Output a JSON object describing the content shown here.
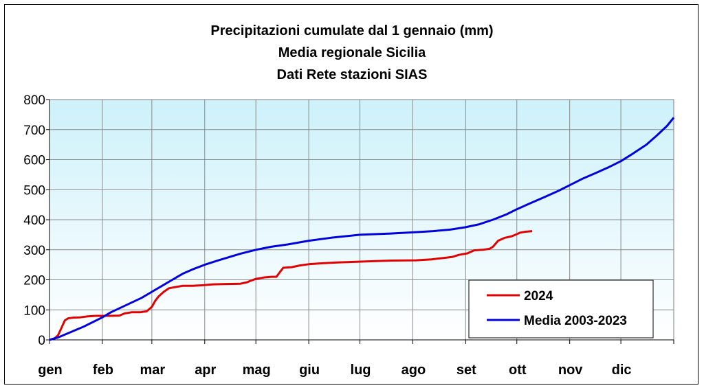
{
  "chart_data": {
    "type": "line",
    "title": [
      "Precipitazioni cumulate dal 1 gennaio (mm)",
      "Media regionale Sicilia",
      "Dati Rete stazioni SIAS"
    ],
    "xlabel": "",
    "ylabel": "",
    "ylim": [
      0,
      800
    ],
    "yticks": [
      0,
      100,
      200,
      300,
      400,
      500,
      600,
      700,
      800
    ],
    "x_unit": "day of year",
    "xlim": [
      0,
      366
    ],
    "month_labels": [
      "gen",
      "feb",
      "mar",
      "apr",
      "mag",
      "giu",
      "lug",
      "ago",
      "set",
      "ott",
      "nov",
      "dic"
    ],
    "month_starts": [
      0,
      31,
      60,
      91,
      121,
      152,
      182,
      213,
      244,
      274,
      305,
      335
    ],
    "grid": true,
    "legend_position": "bottom-right",
    "series": [
      {
        "name": "2024",
        "color": "#e00000",
        "points": [
          [
            0,
            0
          ],
          [
            3,
            5
          ],
          [
            5,
            15
          ],
          [
            7,
            40
          ],
          [
            9,
            65
          ],
          [
            11,
            72
          ],
          [
            14,
            74
          ],
          [
            18,
            75
          ],
          [
            22,
            78
          ],
          [
            27,
            80
          ],
          [
            31,
            80
          ],
          [
            36,
            80
          ],
          [
            41,
            81
          ],
          [
            44,
            88
          ],
          [
            48,
            92
          ],
          [
            53,
            92
          ],
          [
            57,
            95
          ],
          [
            60,
            110
          ],
          [
            62,
            130
          ],
          [
            64,
            145
          ],
          [
            67,
            160
          ],
          [
            70,
            172
          ],
          [
            74,
            176
          ],
          [
            78,
            180
          ],
          [
            84,
            180
          ],
          [
            90,
            182
          ],
          [
            96,
            185
          ],
          [
            104,
            186
          ],
          [
            112,
            187
          ],
          [
            116,
            192
          ],
          [
            118,
            197
          ],
          [
            121,
            203
          ],
          [
            126,
            208
          ],
          [
            130,
            210
          ],
          [
            133,
            210
          ],
          [
            135,
            225
          ],
          [
            137,
            240
          ],
          [
            142,
            242
          ],
          [
            147,
            248
          ],
          [
            152,
            252
          ],
          [
            160,
            255
          ],
          [
            170,
            258
          ],
          [
            180,
            260
          ],
          [
            190,
            262
          ],
          [
            200,
            264
          ],
          [
            215,
            265
          ],
          [
            224,
            268
          ],
          [
            230,
            272
          ],
          [
            236,
            276
          ],
          [
            240,
            283
          ],
          [
            245,
            288
          ],
          [
            249,
            298
          ],
          [
            254,
            300
          ],
          [
            258,
            303
          ],
          [
            260,
            310
          ],
          [
            263,
            330
          ],
          [
            267,
            340
          ],
          [
            271,
            345
          ],
          [
            274,
            352
          ],
          [
            276,
            357
          ],
          [
            279,
            360
          ],
          [
            283,
            362
          ]
        ]
      },
      {
        "name": "Media 2003-2023",
        "color": "#0000dd",
        "points": [
          [
            0,
            0
          ],
          [
            5,
            8
          ],
          [
            10,
            20
          ],
          [
            15,
            32
          ],
          [
            20,
            44
          ],
          [
            25,
            58
          ],
          [
            31,
            75
          ],
          [
            36,
            92
          ],
          [
            42,
            108
          ],
          [
            48,
            124
          ],
          [
            54,
            140
          ],
          [
            60,
            160
          ],
          [
            66,
            180
          ],
          [
            72,
            200
          ],
          [
            78,
            220
          ],
          [
            84,
            235
          ],
          [
            91,
            250
          ],
          [
            98,
            263
          ],
          [
            105,
            275
          ],
          [
            112,
            287
          ],
          [
            121,
            300
          ],
          [
            130,
            310
          ],
          [
            140,
            318
          ],
          [
            152,
            330
          ],
          [
            165,
            340
          ],
          [
            182,
            350
          ],
          [
            200,
            354
          ],
          [
            213,
            358
          ],
          [
            225,
            362
          ],
          [
            235,
            367
          ],
          [
            244,
            375
          ],
          [
            252,
            385
          ],
          [
            260,
            400
          ],
          [
            268,
            418
          ],
          [
            274,
            435
          ],
          [
            282,
            455
          ],
          [
            290,
            475
          ],
          [
            298,
            495
          ],
          [
            305,
            515
          ],
          [
            312,
            535
          ],
          [
            320,
            555
          ],
          [
            328,
            575
          ],
          [
            335,
            595
          ],
          [
            342,
            620
          ],
          [
            350,
            650
          ],
          [
            356,
            680
          ],
          [
            362,
            712
          ],
          [
            366,
            740
          ]
        ]
      }
    ]
  }
}
